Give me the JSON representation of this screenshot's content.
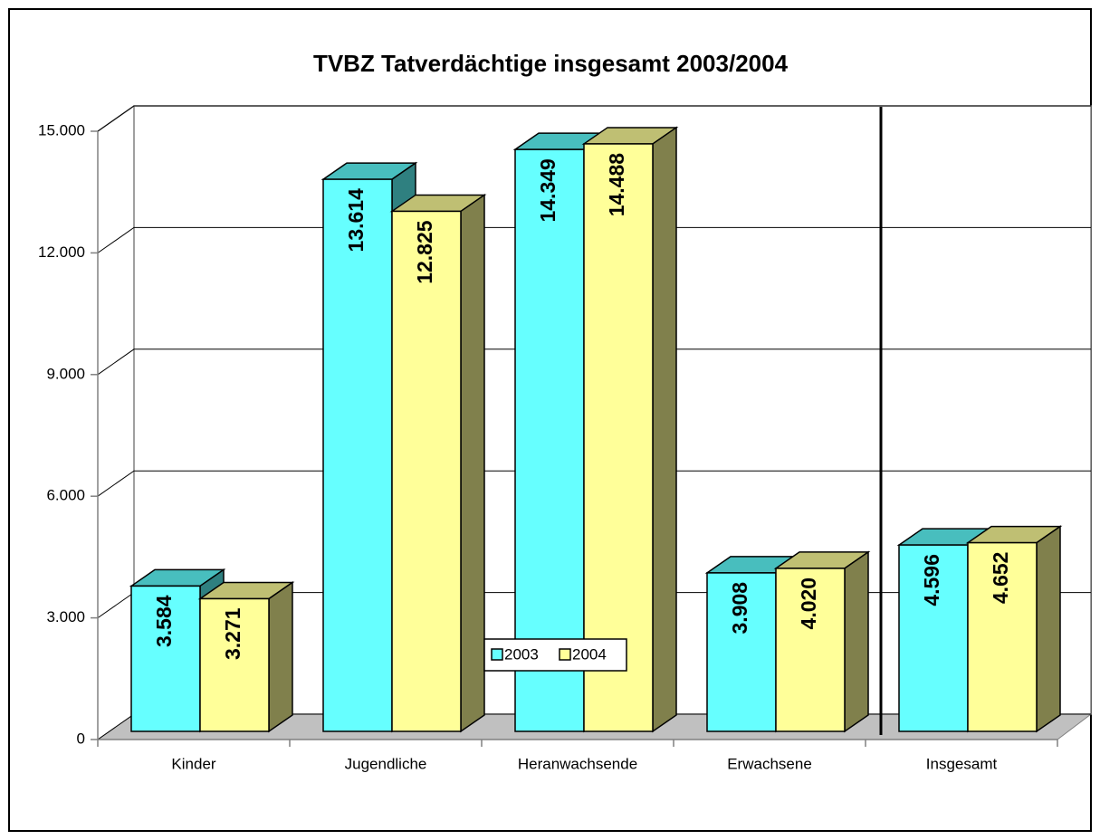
{
  "chart_data": {
    "type": "bar3d",
    "title": "TVBZ Tatverdächtige insgesamt 2003/2004",
    "categories": [
      "Kinder",
      "Jugendliche",
      "Heranwachsende",
      "Erwachsene",
      "Insgesamt"
    ],
    "series": [
      {
        "name": "2003",
        "color": "#66ffff",
        "values": [
          3584,
          13614,
          14349,
          3908,
          4596
        ],
        "value_labels": [
          "3.584",
          "13.614",
          "14.349",
          "3.908",
          "4.596"
        ]
      },
      {
        "name": "2004",
        "color": "#ffff99",
        "values": [
          3271,
          12825,
          14488,
          4020,
          4652
        ],
        "value_labels": [
          "3.271",
          "12.825",
          "14.488",
          "4.020",
          "4.652"
        ]
      }
    ],
    "ylim": [
      0,
      15000
    ],
    "yticks": [
      0,
      {
        "value": 3000,
        "label": "3.000"
      },
      {
        "value": 6000,
        "label": "6.000"
      },
      {
        "value": 9000,
        "label": "9.000"
      },
      {
        "value": 12000,
        "label": "12.000"
      },
      {
        "value": 15000,
        "label": "15.000"
      }
    ],
    "grid": true,
    "legend": "bottom"
  }
}
